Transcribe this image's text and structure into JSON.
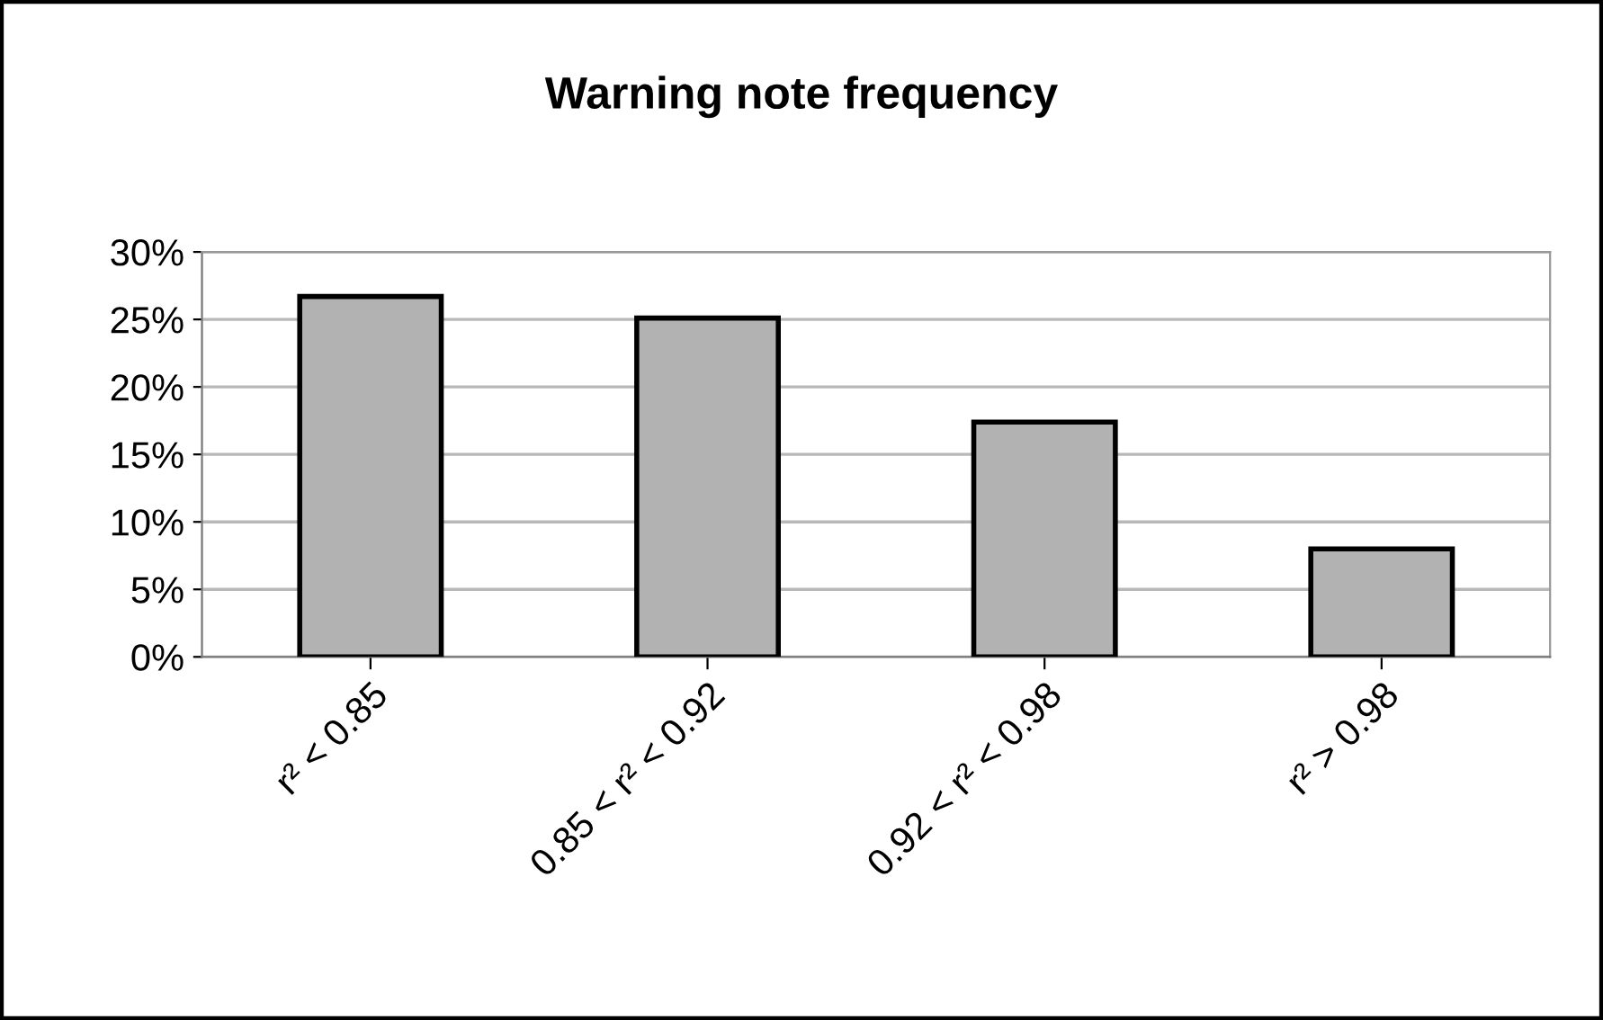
{
  "chart_data": {
    "type": "bar",
    "title": "Warning note frequency",
    "categories": [
      "r² < 0.85",
      "0.85 < r² < 0.92",
      "0.92 < r² < 0.98",
      "r² > 0.98"
    ],
    "values": [
      26.7,
      25.1,
      17.4,
      8.0
    ],
    "color": "#b2b2b2",
    "ylim": [
      0,
      30
    ],
    "yticks": [
      {
        "value": 0,
        "label": "0%"
      },
      {
        "value": 5,
        "label": "5%"
      },
      {
        "value": 10,
        "label": "10%"
      },
      {
        "value": 15,
        "label": "15%"
      },
      {
        "value": 20,
        "label": "20%"
      },
      {
        "value": 25,
        "label": "25%"
      },
      {
        "value": 30,
        "label": "30%"
      }
    ],
    "grid": "y",
    "legend": false
  }
}
